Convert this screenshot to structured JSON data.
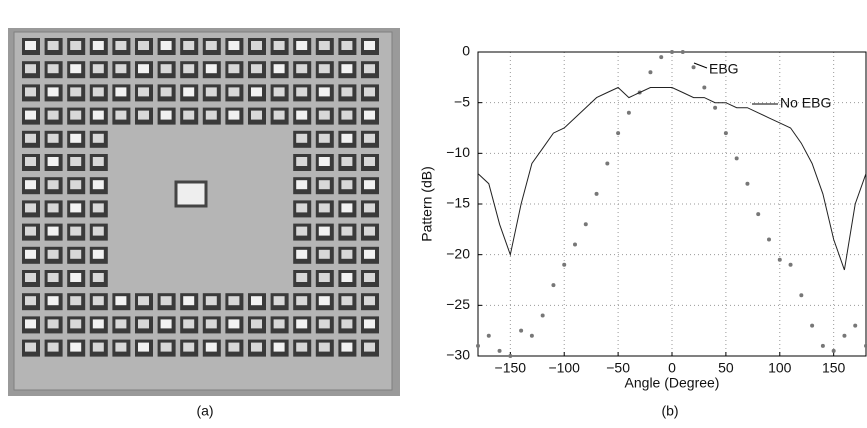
{
  "captions": {
    "a": "(a)",
    "b": "(b)"
  },
  "chart_data": {
    "type": "line",
    "xlabel": "Angle (Degree)",
    "ylabel": "Pattern (dB)",
    "xlim": [
      -180,
      180
    ],
    "ylim": [
      -30,
      0
    ],
    "xticks": [
      {
        "value": -150,
        "label": "−150"
      },
      {
        "value": -100,
        "label": "−100"
      },
      {
        "value": -50,
        "label": "−50"
      },
      0,
      50,
      100,
      150
    ],
    "yticks": [
      0,
      {
        "value": -5,
        "label": "−5"
      },
      {
        "value": -10,
        "label": "−10"
      },
      {
        "value": -15,
        "label": "−15"
      },
      {
        "value": -20,
        "label": "−20"
      },
      {
        "value": -25,
        "label": "−25"
      },
      {
        "value": -30,
        "label": "−30"
      }
    ],
    "grid": true,
    "x": [
      -180,
      -170,
      -160,
      -150,
      -140,
      -130,
      -120,
      -110,
      -100,
      -90,
      -80,
      -70,
      -60,
      -50,
      -40,
      -30,
      -20,
      -10,
      0,
      10,
      20,
      30,
      40,
      50,
      60,
      70,
      80,
      90,
      100,
      110,
      120,
      130,
      140,
      150,
      160,
      170,
      180
    ],
    "series": [
      {
        "name": "EBG",
        "color": "#777777",
        "style": "dots",
        "values": [
          -29,
          -28,
          -29.5,
          -30,
          -27.5,
          -28,
          -26,
          -23,
          -21,
          -19,
          -17,
          -14,
          -11,
          -8,
          -6,
          -4,
          -2,
          -0.5,
          0,
          0,
          -1.5,
          -3.5,
          -5.5,
          -8,
          -10.5,
          -13,
          -16,
          -18.5,
          -20.5,
          -21,
          -24,
          -27,
          -29,
          -29.5,
          -28,
          -27,
          -29
        ]
      },
      {
        "name": "No EBG",
        "color": "#222222",
        "style": "line",
        "values": [
          -12,
          -13,
          -17,
          -20,
          -15,
          -11,
          -9.5,
          -8,
          -7.5,
          -6.5,
          -5.5,
          -4.5,
          -4,
          -3.5,
          -4.5,
          -4,
          -3.5,
          -3.5,
          -3.5,
          -4,
          -4.5,
          -4.5,
          -5,
          -5,
          -5.5,
          -5.5,
          -6,
          -6.5,
          -7,
          -7.5,
          -9,
          -11,
          -14,
          -18.5,
          -21.5,
          -15,
          -12
        ]
      }
    ]
  }
}
